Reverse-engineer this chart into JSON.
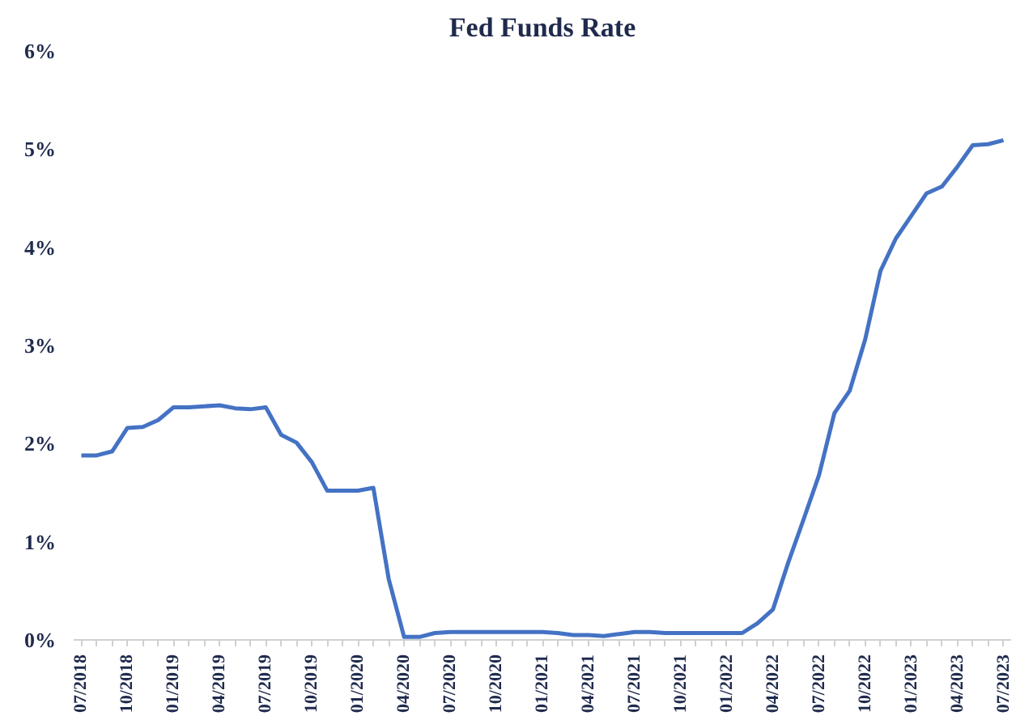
{
  "chart_data": {
    "type": "line",
    "title": "Fed Funds Rate",
    "categories": [
      "07/2018",
      null,
      null,
      "10/2018",
      null,
      null,
      "01/2019",
      null,
      null,
      "04/2019",
      null,
      null,
      "07/2019",
      null,
      null,
      "10/2019",
      null,
      null,
      "01/2020",
      null,
      null,
      "04/2020",
      null,
      null,
      "07/2020",
      null,
      null,
      "10/2020",
      null,
      null,
      "01/2021",
      null,
      null,
      "04/2021",
      null,
      null,
      "07/2021",
      null,
      null,
      "10/2021",
      null,
      null,
      "01/2022",
      null,
      null,
      "04/2022",
      null,
      null,
      "07/2022",
      null,
      null,
      "10/2022",
      null,
      null,
      "01/2023",
      null,
      null,
      "04/2023",
      null,
      null,
      "07/2023"
    ],
    "series": [
      {
        "color": "#4472c4",
        "values": [
          1.88,
          1.88,
          1.92,
          2.16,
          2.17,
          2.24,
          2.37,
          2.37,
          2.38,
          2.39,
          2.36,
          2.35,
          2.37,
          2.09,
          2.01,
          1.81,
          1.52,
          1.52,
          1.52,
          1.55,
          0.62,
          0.03,
          0.03,
          0.07,
          0.08,
          0.08,
          0.08,
          0.08,
          0.08,
          0.08,
          0.08,
          0.07,
          0.05,
          0.05,
          0.04,
          0.06,
          0.08,
          0.08,
          0.07,
          0.07,
          0.07,
          0.07,
          0.07,
          0.07,
          0.17,
          0.31,
          0.79,
          1.23,
          1.68,
          2.31,
          2.54,
          3.06,
          3.76,
          4.09,
          4.32,
          4.55,
          4.62,
          4.82,
          5.04,
          5.05,
          5.09
        ]
      }
    ],
    "ylim": [
      0,
      6
    ],
    "yticks": [
      {
        "value": 0,
        "label": "0%"
      },
      {
        "value": 1,
        "label": "1%"
      },
      {
        "value": 2,
        "label": "2%"
      },
      {
        "value": 3,
        "label": "3%"
      },
      {
        "value": 4,
        "label": "4%"
      },
      {
        "value": 5,
        "label": "5%"
      },
      {
        "value": 6,
        "label": "6%"
      }
    ],
    "grid": false,
    "marker": "none",
    "line_style": "solid"
  }
}
